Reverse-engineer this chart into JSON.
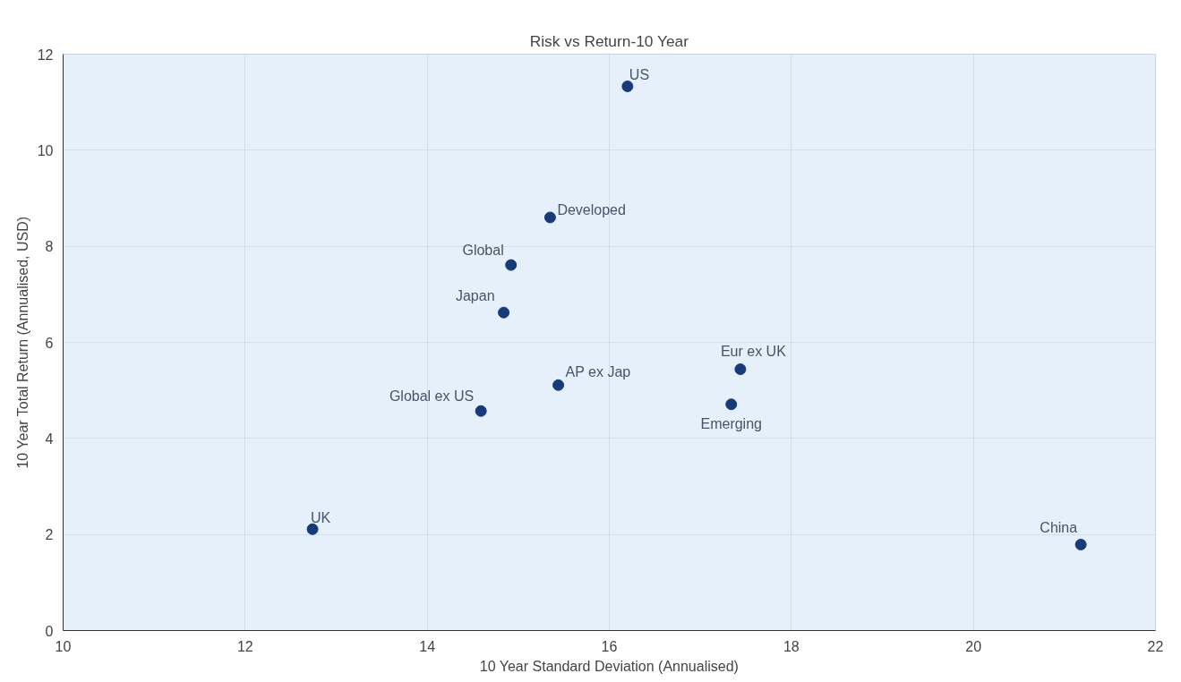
{
  "chart_data": {
    "type": "scatter",
    "title": "Risk vs Return-10 Year",
    "xlabel": "10 Year Standard Deviation (Annualised)",
    "ylabel": "10 Year Total Return (Annualised, USD)",
    "xlim": [
      10,
      22
    ],
    "xticks": [
      10,
      12,
      14,
      16,
      18,
      20,
      22
    ],
    "ylim": [
      0,
      12
    ],
    "yticks": [
      0,
      2,
      4,
      6,
      8,
      10,
      12
    ],
    "grid": true,
    "marker": "circle",
    "legend": false,
    "series": [
      {
        "name": "US",
        "color": "#163a7a",
        "x": [
          16.2
        ],
        "values": [
          11.33
        ]
      },
      {
        "name": "Developed",
        "color": "#163a7a",
        "x": [
          15.35
        ],
        "values": [
          8.6
        ]
      },
      {
        "name": "Global",
        "color": "#163a7a",
        "x": [
          14.92
        ],
        "values": [
          7.61
        ]
      },
      {
        "name": "Japan",
        "color": "#163a7a",
        "x": [
          14.84
        ],
        "values": [
          6.62
        ]
      },
      {
        "name": "Eur ex UK",
        "color": "#163a7a",
        "x": [
          17.44
        ],
        "values": [
          5.44
        ]
      },
      {
        "name": "AP ex Jap",
        "color": "#163a7a",
        "x": [
          15.44
        ],
        "values": [
          5.11
        ]
      },
      {
        "name": "Emerging",
        "color": "#163a7a",
        "x": [
          17.34
        ],
        "values": [
          4.71
        ]
      },
      {
        "name": "Global ex US",
        "color": "#163a7a",
        "x": [
          14.59
        ],
        "values": [
          4.57
        ]
      },
      {
        "name": "UK",
        "color": "#163a7a",
        "x": [
          12.74
        ],
        "values": [
          2.11
        ]
      },
      {
        "name": "China",
        "color": "#163a7a",
        "x": [
          21.18
        ],
        "values": [
          1.79
        ]
      }
    ]
  }
}
